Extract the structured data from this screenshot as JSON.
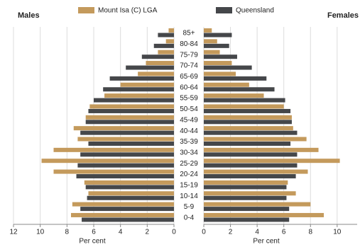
{
  "chart_data": {
    "type": "pyramid",
    "categories": [
      "85+",
      "80-84",
      "75-79",
      "70-74",
      "65-69",
      "60-64",
      "55-59",
      "50-54",
      "45-49",
      "40-44",
      "35-39",
      "30-34",
      "25-29",
      "20-24",
      "15-19",
      "10-14",
      "5-9",
      "0-4"
    ],
    "left": {
      "title": "Males",
      "xlabel": "Per cent",
      "xlim": [
        0,
        12
      ],
      "xticks": [
        0,
        2,
        4,
        6,
        8,
        10,
        12
      ]
    },
    "right": {
      "title": "Females",
      "xlabel": "Per cent",
      "xlim": [
        0,
        11.5
      ],
      "xticks": [
        0,
        2,
        4,
        6,
        8,
        10
      ]
    },
    "grid": true,
    "series": [
      {
        "name": "Mount Isa (C) LGA",
        "color": "#c49a5c",
        "male_values": [
          0.4,
          0.6,
          1.2,
          2.1,
          2.7,
          4.0,
          5.2,
          6.3,
          6.6,
          7.5,
          7.2,
          9.0,
          9.9,
          9.0,
          6.7,
          6.4,
          7.6,
          7.7
        ],
        "female_values": [
          0.6,
          1.0,
          1.2,
          2.1,
          2.4,
          3.4,
          4.5,
          6.0,
          6.6,
          6.7,
          7.7,
          8.6,
          10.2,
          7.8,
          6.3,
          6.9,
          8.0,
          9.0
        ]
      },
      {
        "name": "Queensland",
        "color": "#45474a",
        "male_values": [
          1.2,
          1.5,
          2.4,
          3.6,
          4.8,
          5.3,
          6.0,
          6.4,
          6.6,
          7.0,
          6.4,
          7.0,
          7.2,
          7.3,
          6.6,
          6.5,
          7.0,
          6.9
        ],
        "female_values": [
          2.1,
          1.9,
          2.5,
          3.6,
          4.7,
          5.3,
          6.1,
          6.5,
          6.6,
          7.0,
          6.5,
          7.0,
          7.0,
          6.9,
          6.2,
          6.2,
          6.4,
          6.4
        ]
      }
    ]
  }
}
